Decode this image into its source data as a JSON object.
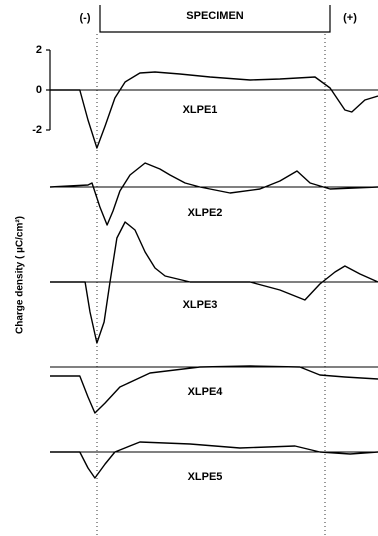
{
  "header": {
    "left": "(-)",
    "center": "SPECIMEN",
    "right": "(+)"
  },
  "y_label": "Charge density ( µC/cm²)",
  "chart_data": [
    {
      "type": "line",
      "title": "XLPE1",
      "ylim": [
        -2,
        2
      ],
      "yticks": [
        -2,
        0,
        2
      ],
      "xlim": [
        0,
        100
      ],
      "x": [
        0,
        9.1,
        11.6,
        14.3,
        16.8,
        19.8,
        22.9,
        27.4,
        32,
        39.6,
        48.8,
        61,
        70.1,
        80.8,
        85.4,
        89.9,
        92,
        96,
        100
      ],
      "values": [
        0,
        0,
        -1.5,
        -2.9,
        -1.8,
        -0.4,
        0.4,
        0.85,
        0.9,
        0.8,
        0.65,
        0.5,
        0.55,
        0.65,
        0.1,
        -1.0,
        -1.1,
        -0.5,
        -0.3
      ],
      "color": "#000000"
    },
    {
      "type": "line",
      "title": "XLPE2",
      "xlim": [
        0,
        100
      ],
      "x": [
        0,
        11.6,
        12.8,
        15.2,
        17.4,
        19.2,
        21.3,
        24.4,
        29,
        33.5,
        36.6,
        41.2,
        45.7,
        54.9,
        64,
        70.1,
        75.3,
        79.3,
        85.4,
        100
      ],
      "values": [
        0,
        0.1,
        0.2,
        -1.0,
        -1.9,
        -1.2,
        -0.2,
        0.6,
        1.2,
        0.9,
        0.6,
        0.2,
        0,
        -0.3,
        -0.1,
        0.3,
        0.8,
        0.2,
        -0.1,
        0
      ],
      "color": "#000000"
    },
    {
      "type": "line",
      "title": "XLPE3",
      "xlim": [
        0,
        100
      ],
      "x": [
        0,
        10.7,
        12.2,
        14.3,
        16.5,
        18.3,
        20.4,
        22.9,
        25.9,
        29,
        32,
        35.1,
        42.7,
        61,
        70.1,
        77.7,
        82.3,
        86.9,
        89.9,
        94.5,
        100
      ],
      "values": [
        0,
        0,
        -1.5,
        -3.05,
        -2.0,
        0,
        2.2,
        3.0,
        2.6,
        1.5,
        0.7,
        0.3,
        0,
        0,
        -0.4,
        -0.9,
        -0.1,
        0.5,
        0.8,
        0.4,
        0
      ],
      "color": "#000000"
    },
    {
      "type": "line",
      "title": "XLPE4",
      "xlim": [
        0,
        100
      ],
      "x": [
        0,
        9.1,
        11.6,
        13.7,
        16.8,
        21.3,
        30.5,
        45.7,
        61,
        76.2,
        82.3,
        89.9,
        100
      ],
      "values": [
        -0.45,
        -0.45,
        -1.5,
        -2.3,
        -1.8,
        -1.0,
        -0.3,
        0,
        0.05,
        0,
        -0.4,
        -0.5,
        -0.6
      ],
      "color": "#000000"
    },
    {
      "type": "line",
      "title": "XLPE5",
      "xlim": [
        0,
        100
      ],
      "x": [
        0,
        9.1,
        11.6,
        13.7,
        16.8,
        19.8,
        27.4,
        42.7,
        57.9,
        74.7,
        82.3,
        91.5,
        100
      ],
      "values": [
        0,
        0,
        -0.8,
        -1.3,
        -0.6,
        0,
        0.5,
        0.4,
        0.2,
        0.3,
        0,
        -0.1,
        0
      ],
      "color": "#000000"
    }
  ]
}
